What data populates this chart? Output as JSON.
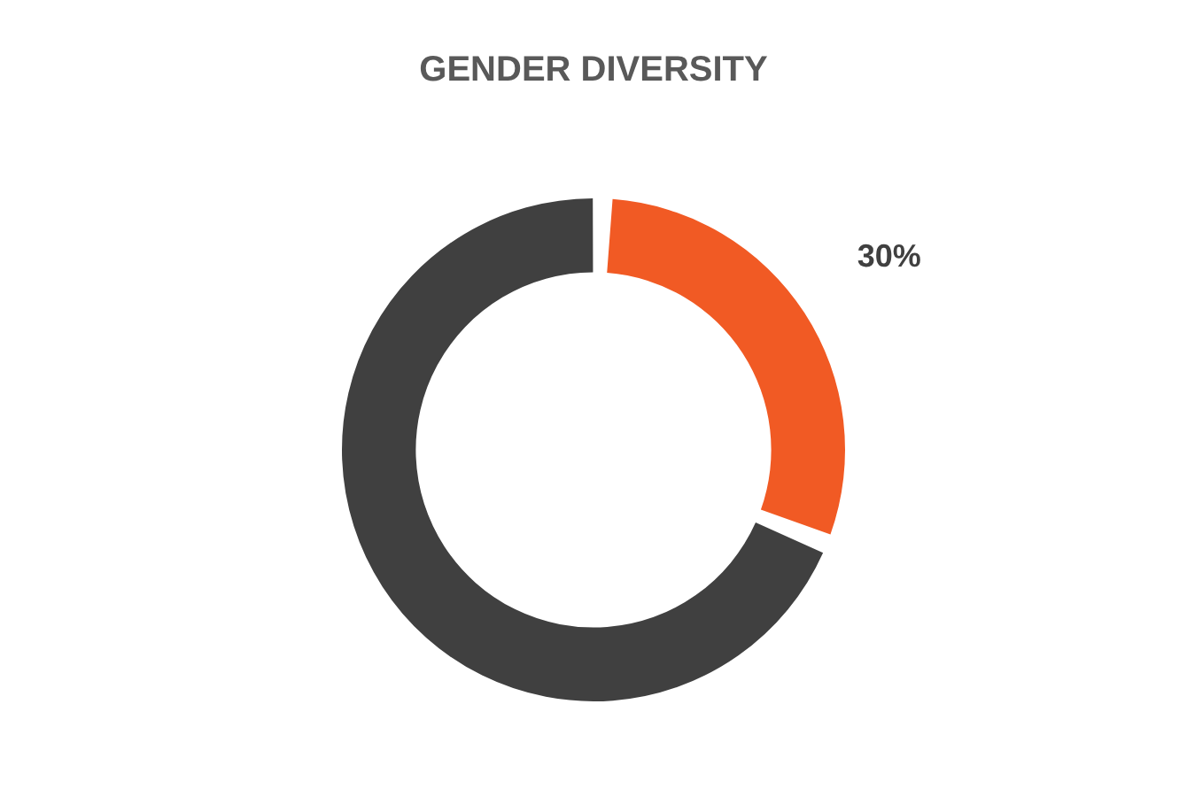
{
  "chart_data": {
    "type": "donut",
    "title": "GENDER DIVERSITY",
    "categories": [
      null,
      null
    ],
    "values": [
      30,
      70
    ],
    "colors": [
      "#f15a24",
      "#404040"
    ],
    "value_labels": [
      "30%",
      null
    ],
    "legend": false
  }
}
